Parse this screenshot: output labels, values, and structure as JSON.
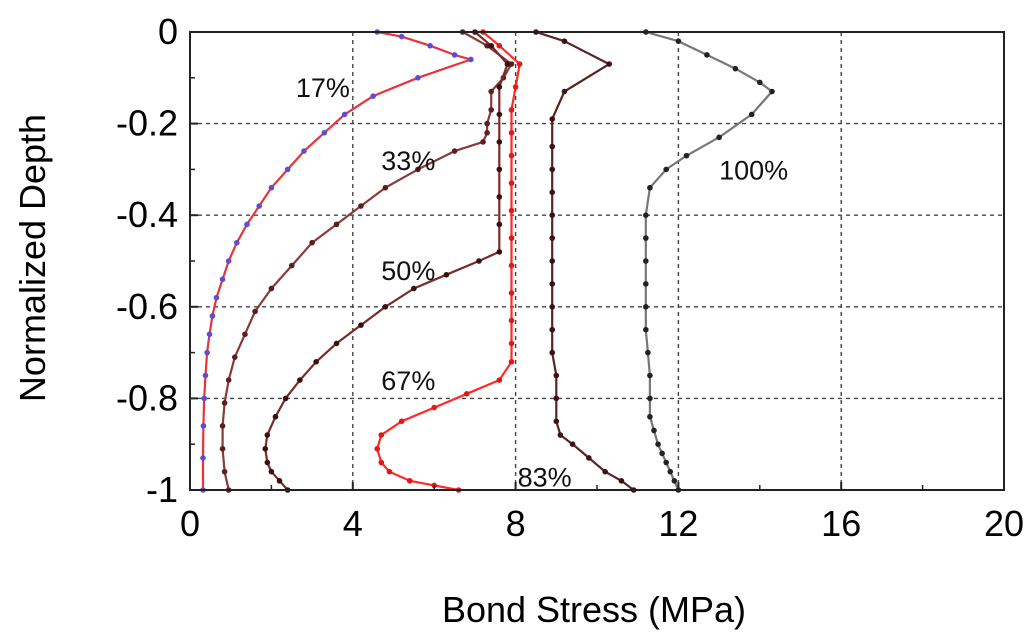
{
  "chart_data": {
    "type": "line",
    "xlabel": "Bond Stress (MPa)",
    "ylabel": "Normalized Depth",
    "xlim": [
      0,
      20
    ],
    "ylim": [
      -1,
      0
    ],
    "xticks": [
      0,
      4,
      8,
      12,
      16,
      20
    ],
    "yticks": [
      0,
      -0.2,
      -0.4,
      -0.6,
      -0.8,
      -1
    ],
    "x_tick_labels": [
      "0",
      "4",
      "8",
      "12",
      "16",
      "20"
    ],
    "y_tick_labels": [
      "0",
      "-0.2",
      "-0.4",
      "-0.6",
      "-0.8",
      "-1"
    ],
    "grid": true,
    "colors": {
      "s17": "#e8323c",
      "s17_marker": "#5a4fd0",
      "s33": "#8a3a3a",
      "s33_marker": "#5e1e1e",
      "s50": "#7a2a2a",
      "s50_marker": "#3a0f0f",
      "s67": "#ff2a2a",
      "s67_marker": "#e01818",
      "s83": "#5a2424",
      "s83_marker": "#3a1212",
      "s100": "#777777",
      "s100_marker": "#222222"
    },
    "series": [
      {
        "label": "17%",
        "label_pos": [
          2.6,
          -0.12
        ],
        "x": [
          4.6,
          5.2,
          5.9,
          6.5,
          6.9,
          5.6,
          4.5,
          3.8,
          3.3,
          2.8,
          2.4,
          2.0,
          1.7,
          1.4,
          1.15,
          0.95,
          0.8,
          0.65,
          0.55,
          0.48,
          0.42,
          0.38,
          0.35,
          0.33,
          0.32,
          0.32
        ],
        "y": [
          0,
          -0.01,
          -0.03,
          -0.05,
          -0.06,
          -0.1,
          -0.14,
          -0.18,
          -0.22,
          -0.26,
          -0.3,
          -0.34,
          -0.38,
          -0.42,
          -0.46,
          -0.5,
          -0.54,
          -0.58,
          -0.62,
          -0.66,
          -0.7,
          -0.75,
          -0.8,
          -0.86,
          -0.93,
          -1.0
        ]
      },
      {
        "label": "33%",
        "label_pos": [
          4.7,
          -0.28
        ],
        "x": [
          6.7,
          7.3,
          7.9,
          7.7,
          7.4,
          7.4,
          7.3,
          7.3,
          7.2,
          6.5,
          5.6,
          4.8,
          4.2,
          3.6,
          3.0,
          2.5,
          2.0,
          1.6,
          1.35,
          1.1,
          0.95,
          0.85,
          0.8,
          0.8,
          0.85,
          0.95
        ],
        "y": [
          0,
          -0.03,
          -0.07,
          -0.1,
          -0.13,
          -0.17,
          -0.2,
          -0.22,
          -0.24,
          -0.26,
          -0.3,
          -0.34,
          -0.38,
          -0.42,
          -0.46,
          -0.51,
          -0.56,
          -0.61,
          -0.66,
          -0.71,
          -0.76,
          -0.81,
          -0.86,
          -0.91,
          -0.96,
          -1.0
        ]
      },
      {
        "label": "50%",
        "label_pos": [
          4.7,
          -0.52
        ],
        "x": [
          7.0,
          7.4,
          7.8,
          7.6,
          7.6,
          7.6,
          7.6,
          7.6,
          7.6,
          7.6,
          7.1,
          6.3,
          5.5,
          4.8,
          4.2,
          3.6,
          3.1,
          2.7,
          2.35,
          2.1,
          1.9,
          1.85,
          1.9,
          2.0,
          2.2,
          2.4
        ],
        "y": [
          0,
          -0.03,
          -0.07,
          -0.12,
          -0.18,
          -0.24,
          -0.3,
          -0.36,
          -0.42,
          -0.48,
          -0.5,
          -0.53,
          -0.56,
          -0.6,
          -0.64,
          -0.68,
          -0.72,
          -0.76,
          -0.8,
          -0.84,
          -0.88,
          -0.91,
          -0.94,
          -0.96,
          -0.98,
          -1.0
        ]
      },
      {
        "label": "67%",
        "label_pos": [
          4.7,
          -0.76
        ],
        "x": [
          7.2,
          7.6,
          8.1,
          8.0,
          7.9,
          7.9,
          7.9,
          7.9,
          7.9,
          7.9,
          7.9,
          7.9,
          7.9,
          7.9,
          7.9,
          7.6,
          6.8,
          6.0,
          5.2,
          4.7,
          4.6,
          4.7,
          4.9,
          5.4,
          6.0,
          6.6
        ],
        "y": [
          0,
          -0.03,
          -0.07,
          -0.12,
          -0.17,
          -0.22,
          -0.27,
          -0.33,
          -0.39,
          -0.45,
          -0.51,
          -0.57,
          -0.63,
          -0.68,
          -0.72,
          -0.76,
          -0.79,
          -0.82,
          -0.85,
          -0.88,
          -0.91,
          -0.94,
          -0.96,
          -0.98,
          -0.99,
          -1.0
        ]
      },
      {
        "label": "83%",
        "label_pos": [
          8.05,
          -0.97
        ],
        "x": [
          8.5,
          9.2,
          10.3,
          9.2,
          8.9,
          8.9,
          8.9,
          8.9,
          8.9,
          8.9,
          8.9,
          8.9,
          8.9,
          8.9,
          8.9,
          9.0,
          9.0,
          9.0,
          9.1,
          9.4,
          9.8,
          10.2,
          10.6,
          10.9
        ],
        "y": [
          0,
          -0.02,
          -0.07,
          -0.13,
          -0.19,
          -0.25,
          -0.3,
          -0.35,
          -0.4,
          -0.45,
          -0.5,
          -0.55,
          -0.6,
          -0.65,
          -0.7,
          -0.75,
          -0.8,
          -0.85,
          -0.88,
          -0.9,
          -0.93,
          -0.96,
          -0.98,
          -1.0
        ]
      },
      {
        "label": "100%",
        "label_pos": [
          13.0,
          -0.3
        ],
        "x": [
          11.2,
          12.0,
          12.7,
          13.4,
          14.0,
          14.3,
          13.8,
          13.0,
          12.2,
          11.7,
          11.3,
          11.2,
          11.2,
          11.2,
          11.2,
          11.2,
          11.2,
          11.25,
          11.3,
          11.3,
          11.3,
          11.4,
          11.5,
          11.6,
          11.7,
          11.8,
          11.9,
          12.0
        ],
        "y": [
          0,
          -0.02,
          -0.05,
          -0.08,
          -0.11,
          -0.13,
          -0.18,
          -0.23,
          -0.27,
          -0.3,
          -0.34,
          -0.4,
          -0.45,
          -0.5,
          -0.55,
          -0.6,
          -0.65,
          -0.7,
          -0.75,
          -0.8,
          -0.84,
          -0.87,
          -0.9,
          -0.92,
          -0.94,
          -0.96,
          -0.98,
          -1.0
        ]
      }
    ]
  }
}
